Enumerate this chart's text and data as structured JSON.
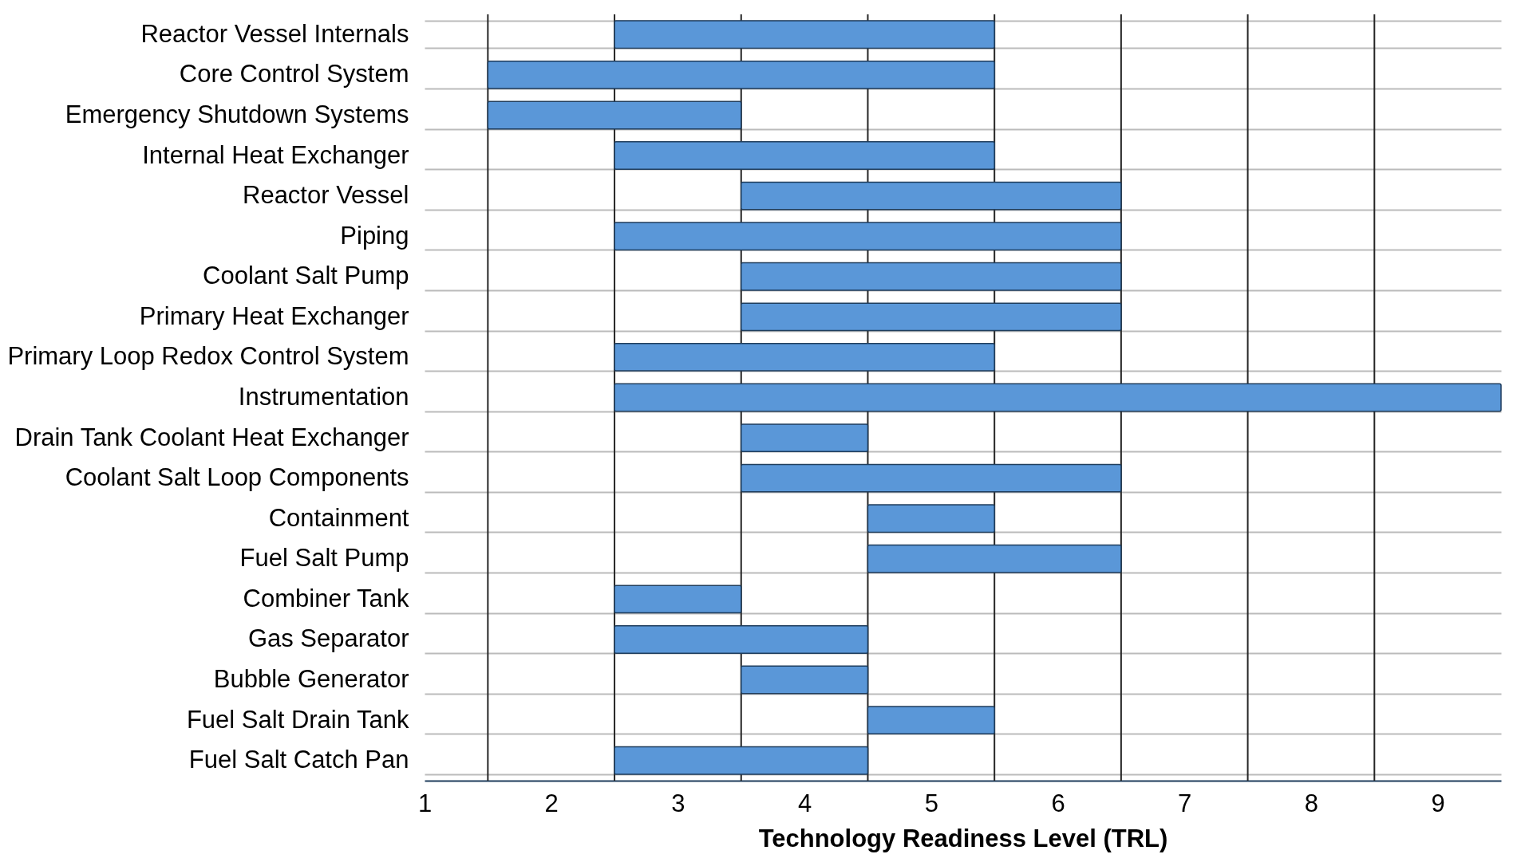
{
  "chart_data": {
    "type": "bar",
    "orientation": "horizontal",
    "xlabel": "Technology Readiness Level (TRL)",
    "categories": [
      "Reactor Vessel Internals",
      "Core Control System",
      "Emergency Shutdown Systems",
      "Internal Heat Exchanger",
      "Reactor Vessel",
      "Piping",
      "Coolant Salt Pump",
      "Primary Heat Exchanger",
      "Primary Loop Redox Control System",
      "Instrumentation",
      "Drain Tank Coolant Heat Exchanger",
      "Coolant Salt Loop Components",
      "Containment",
      "Fuel Salt Pump",
      "Combiner Tank",
      "Gas Separator",
      "Bubble Generator",
      "Fuel Salt Drain Tank",
      "Fuel Salt Catch Pan"
    ],
    "base": [
      2.5,
      1.5,
      1.5,
      2.5,
      3.5,
      2.5,
      3.5,
      3.5,
      2.5,
      2.5,
      3.5,
      3.5,
      4.5,
      4.5,
      2.5,
      2.5,
      3.5,
      4.5,
      2.5
    ],
    "values": [
      3,
      4,
      2,
      3,
      3,
      4,
      3,
      3,
      3,
      7,
      1,
      3,
      1,
      2,
      1,
      2,
      1,
      1,
      2
    ],
    "color": "#5a97d8",
    "xlim": [
      1,
      9.5
    ],
    "xticks": [
      1,
      2,
      3,
      4,
      5,
      6,
      7,
      8,
      9
    ],
    "grid": "y",
    "ref_lines": [
      {
        "axis": "x",
        "value": 1.5,
        "color": "#262626"
      },
      {
        "axis": "x",
        "value": 2.5,
        "color": "#262626"
      },
      {
        "axis": "x",
        "value": 3.5,
        "color": "#262626"
      },
      {
        "axis": "x",
        "value": 4.5,
        "color": "#262626"
      },
      {
        "axis": "x",
        "value": 5.5,
        "color": "#262626"
      },
      {
        "axis": "x",
        "value": 6.5,
        "color": "#262626"
      },
      {
        "axis": "x",
        "value": 7.5,
        "color": "#262626"
      },
      {
        "axis": "x",
        "value": 8.5,
        "color": "#262626"
      }
    ]
  }
}
